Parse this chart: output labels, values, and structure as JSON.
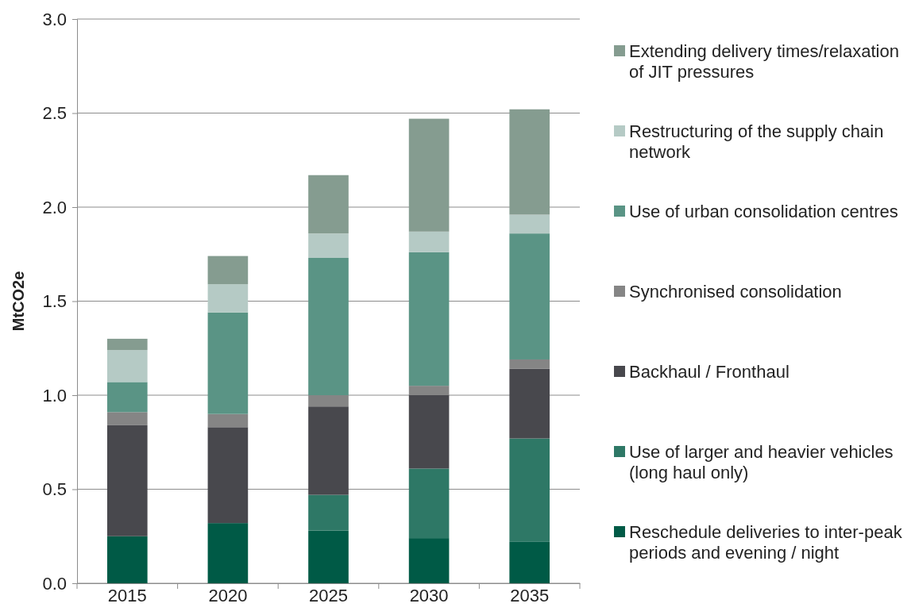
{
  "chart_data": {
    "type": "bar",
    "stacked": true,
    "ylabel": "MtCO2e",
    "categories": [
      "2015",
      "2020",
      "2025",
      "2030",
      "2035"
    ],
    "ylim": [
      0,
      3
    ],
    "yticks": [
      {
        "value": 0,
        "label": "0.0"
      },
      {
        "value": 0.5,
        "label": "0.5"
      },
      {
        "value": 1,
        "label": "1.0"
      },
      {
        "value": 1.5,
        "label": "1.5"
      },
      {
        "value": 2,
        "label": "2.0"
      },
      {
        "value": 2.5,
        "label": "2.5"
      },
      {
        "value": 3,
        "label": "3.0"
      }
    ],
    "grid": "y",
    "legend": "right",
    "series": [
      {
        "name": "Reschedule deliveries to inter-peak periods and evening / night",
        "color": "#005a46",
        "values": [
          0.25,
          0.32,
          0.28,
          0.24,
          0.22
        ]
      },
      {
        "name": "Use of larger and heavier vehicles (long haul only)",
        "color": "#2e7866",
        "values": [
          0,
          0,
          0.19,
          0.37,
          0.55
        ]
      },
      {
        "name": "Backhaul / Fronthaul",
        "color": "#48484d",
        "values": [
          0.59,
          0.51,
          0.47,
          0.39,
          0.37
        ]
      },
      {
        "name": "Synchronised consolidation",
        "color": "#858585",
        "values": [
          0.07,
          0.07,
          0.06,
          0.05,
          0.05
        ]
      },
      {
        "name": "Use of urban consolidation centres",
        "color": "#5a9485",
        "values": [
          0.16,
          0.54,
          0.73,
          0.71,
          0.67
        ]
      },
      {
        "name": "Restructuring of the supply chain network",
        "color": "#b5cac5",
        "values": [
          0.17,
          0.15,
          0.13,
          0.11,
          0.1
        ]
      },
      {
        "name": "Extending delivery times/relaxation of JIT pressures",
        "color": "#859c90",
        "values": [
          0.06,
          0.15,
          0.31,
          0.6,
          0.56
        ]
      }
    ]
  }
}
